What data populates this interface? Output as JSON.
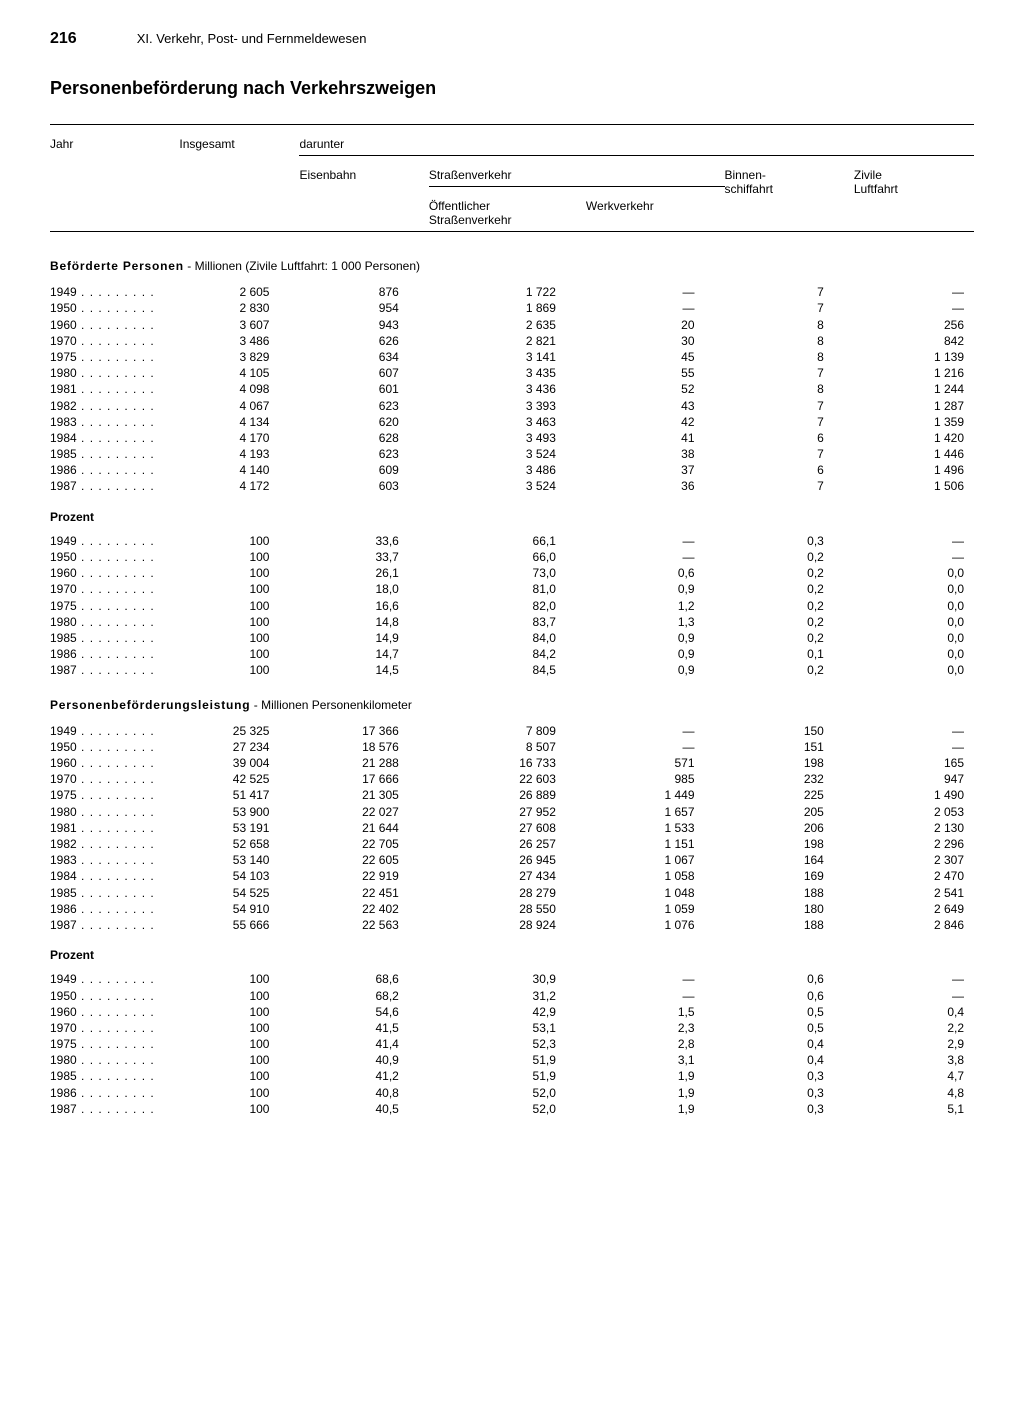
{
  "page_number": "216",
  "chapter": "XI. Verkehr, Post- und Fernmeldewesen",
  "title": "Personenbeförderung nach Verkehrszweigen",
  "col_labels": {
    "jahr": "Jahr",
    "insgesamt": "Insgesamt",
    "darunter": "darunter",
    "eisenbahn": "Eisenbahn",
    "strassenverkehr": "Straßenverkehr",
    "oeff_strasse": "Öffentlicher\nStraßenverkehr",
    "werkverkehr": "Werkverkehr",
    "binnen": "Binnen-\nschiffahrt",
    "zivile": "Zivile\nLuftfahrt"
  },
  "sections": [
    {
      "heading_bold": "Beförderte Personen",
      "heading_rest": " - Millionen (Zivile Luftfahrt: 1 000 Personen)",
      "blocks": [
        {
          "subtitle": null,
          "rows": [
            [
              "1949",
              "2 605",
              "876",
              "1 722",
              "—",
              "7",
              "—"
            ],
            [
              "1950",
              "2 830",
              "954",
              "1 869",
              "—",
              "7",
              "—"
            ],
            [
              "1960",
              "3 607",
              "943",
              "2 635",
              "20",
              "8",
              "256"
            ],
            [
              "1970",
              "3 486",
              "626",
              "2 821",
              "30",
              "8",
              "842"
            ],
            [
              "1975",
              "3 829",
              "634",
              "3 141",
              "45",
              "8",
              "1 139"
            ],
            [
              "1980",
              "4 105",
              "607",
              "3 435",
              "55",
              "7",
              "1 216"
            ],
            [
              "1981",
              "4 098",
              "601",
              "3 436",
              "52",
              "8",
              "1 244"
            ],
            [
              "1982",
              "4 067",
              "623",
              "3 393",
              "43",
              "7",
              "1 287"
            ],
            [
              "1983",
              "4 134",
              "620",
              "3 463",
              "42",
              "7",
              "1 359"
            ],
            [
              "1984",
              "4 170",
              "628",
              "3 493",
              "41",
              "6",
              "1 420"
            ],
            [
              "1985",
              "4 193",
              "623",
              "3 524",
              "38",
              "7",
              "1 446"
            ],
            [
              "1986",
              "4 140",
              "609",
              "3 486",
              "37",
              "6",
              "1 496"
            ],
            [
              "1987",
              "4 172",
              "603",
              "3 524",
              "36",
              "7",
              "1 506"
            ]
          ]
        },
        {
          "subtitle": "Prozent",
          "rows": [
            [
              "1949",
              "100",
              "33,6",
              "66,1",
              "—",
              "0,3",
              "—"
            ],
            [
              "1950",
              "100",
              "33,7",
              "66,0",
              "—",
              "0,2",
              "—"
            ],
            [
              "1960",
              "100",
              "26,1",
              "73,0",
              "0,6",
              "0,2",
              "0,0"
            ],
            [
              "1970",
              "100",
              "18,0",
              "81,0",
              "0,9",
              "0,2",
              "0,0"
            ],
            [
              "1975",
              "100",
              "16,6",
              "82,0",
              "1,2",
              "0,2",
              "0,0"
            ],
            [
              "1980",
              "100",
              "14,8",
              "83,7",
              "1,3",
              "0,2",
              "0,0"
            ],
            [
              "1985",
              "100",
              "14,9",
              "84,0",
              "0,9",
              "0,2",
              "0,0"
            ],
            [
              "1986",
              "100",
              "14,7",
              "84,2",
              "0,9",
              "0,1",
              "0,0"
            ],
            [
              "1987",
              "100",
              "14,5",
              "84,5",
              "0,9",
              "0,2",
              "0,0"
            ]
          ]
        }
      ]
    },
    {
      "heading_bold": "Personenbeförderungsleistung",
      "heading_rest": " - Millionen Personenkilometer",
      "blocks": [
        {
          "subtitle": null,
          "rows": [
            [
              "1949",
              "25 325",
              "17 366",
              "7 809",
              "—",
              "150",
              "—"
            ],
            [
              "1950",
              "27 234",
              "18 576",
              "8 507",
              "—",
              "151",
              "—"
            ],
            [
              "1960",
              "39 004",
              "21 288",
              "16 733",
              "571",
              "198",
              "165"
            ],
            [
              "1970",
              "42 525",
              "17 666",
              "22 603",
              "985",
              "232",
              "947"
            ],
            [
              "1975",
              "51 417",
              "21 305",
              "26 889",
              "1 449",
              "225",
              "1 490"
            ],
            [
              "1980",
              "53 900",
              "22 027",
              "27 952",
              "1 657",
              "205",
              "2 053"
            ],
            [
              "1981",
              "53 191",
              "21 644",
              "27 608",
              "1 533",
              "206",
              "2 130"
            ],
            [
              "1982",
              "52 658",
              "22 705",
              "26 257",
              "1 151",
              "198",
              "2 296"
            ],
            [
              "1983",
              "53 140",
              "22 605",
              "26 945",
              "1 067",
              "164",
              "2 307"
            ],
            [
              "1984",
              "54 103",
              "22 919",
              "27 434",
              "1 058",
              "169",
              "2 470"
            ],
            [
              "1985",
              "54 525",
              "22 451",
              "28 279",
              "1 048",
              "188",
              "2 541"
            ],
            [
              "1986",
              "54 910",
              "22 402",
              "28 550",
              "1 059",
              "180",
              "2 649"
            ],
            [
              "1987",
              "55 666",
              "22 563",
              "28 924",
              "1 076",
              "188",
              "2 846"
            ]
          ]
        },
        {
          "subtitle": "Prozent",
          "rows": [
            [
              "1949",
              "100",
              "68,6",
              "30,9",
              "—",
              "0,6",
              "—"
            ],
            [
              "1950",
              "100",
              "68,2",
              "31,2",
              "—",
              "0,6",
              "—"
            ],
            [
              "1960",
              "100",
              "54,6",
              "42,9",
              "1,5",
              "0,5",
              "0,4"
            ],
            [
              "1970",
              "100",
              "41,5",
              "53,1",
              "2,3",
              "0,5",
              "2,2"
            ],
            [
              "1975",
              "100",
              "41,4",
              "52,3",
              "2,8",
              "0,4",
              "2,9"
            ],
            [
              "1980",
              "100",
              "40,9",
              "51,9",
              "3,1",
              "0,4",
              "3,8"
            ],
            [
              "1985",
              "100",
              "41,2",
              "51,9",
              "1,9",
              "0,3",
              "4,7"
            ],
            [
              "1986",
              "100",
              "40,8",
              "52,0",
              "1,9",
              "0,3",
              "4,8"
            ],
            [
              "1987",
              "100",
              "40,5",
              "52,0",
              "1,9",
              "0,3",
              "5,1"
            ]
          ]
        }
      ]
    }
  ],
  "colwidths_pct": [
    14,
    13,
    14,
    17,
    15,
    14,
    13
  ],
  "font": {
    "body_pt": 12,
    "title_pt": 18,
    "header_pt": 13
  }
}
